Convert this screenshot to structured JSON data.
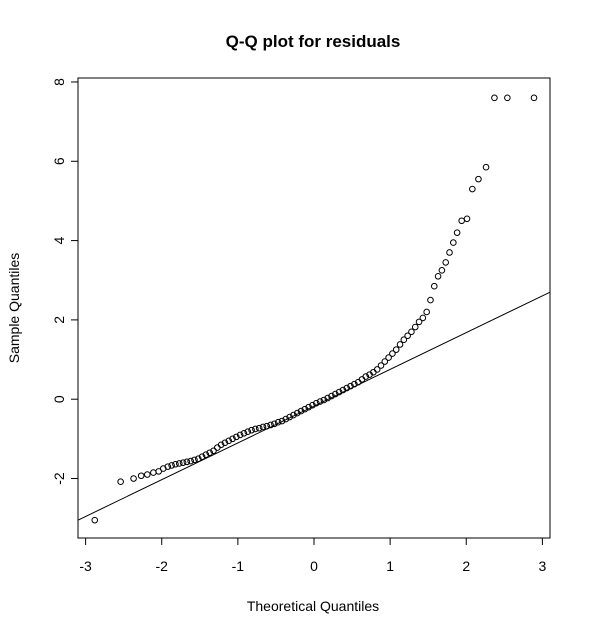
{
  "chart_data": {
    "type": "scatter",
    "title": "Q-Q plot for residuals",
    "xlabel": "Theoretical Quantiles",
    "ylabel": "Sample Quantiles",
    "xlim": [
      -3.1,
      3.1
    ],
    "ylim": [
      -3.5,
      8.1
    ],
    "xticks": [
      -3,
      -2,
      -1,
      0,
      1,
      2,
      3
    ],
    "yticks": [
      -2,
      0,
      2,
      4,
      6,
      8
    ],
    "grid": false,
    "legend": "none",
    "reference_line": {
      "x": [
        -3.1,
        3.1
      ],
      "y": [
        -3.05,
        2.7
      ]
    },
    "points": {
      "x": [
        -2.88,
        -2.54,
        -2.37,
        -2.27,
        -2.19,
        -2.11,
        -2.04,
        -1.98,
        -1.92,
        -1.87,
        -1.82,
        -1.77,
        -1.72,
        -1.67,
        -1.62,
        -1.57,
        -1.52,
        -1.47,
        -1.42,
        -1.37,
        -1.32,
        -1.27,
        -1.22,
        -1.17,
        -1.12,
        -1.07,
        -1.02,
        -0.97,
        -0.92,
        -0.87,
        -0.82,
        -0.77,
        -0.72,
        -0.67,
        -0.62,
        -0.57,
        -0.52,
        -0.47,
        -0.42,
        -0.37,
        -0.32,
        -0.27,
        -0.22,
        -0.17,
        -0.12,
        -0.07,
        -0.02,
        0.03,
        0.08,
        0.13,
        0.18,
        0.23,
        0.28,
        0.33,
        0.38,
        0.43,
        0.48,
        0.53,
        0.58,
        0.63,
        0.68,
        0.73,
        0.78,
        0.83,
        0.88,
        0.93,
        0.98,
        1.03,
        1.08,
        1.13,
        1.18,
        1.23,
        1.28,
        1.33,
        1.38,
        1.43,
        1.48,
        1.53,
        1.58,
        1.63,
        1.68,
        1.73,
        1.78,
        1.83,
        1.88,
        1.94,
        2.01,
        2.08,
        2.16,
        2.26,
        2.37,
        2.54,
        2.89
      ],
      "y": [
        -3.05,
        -2.08,
        -2.0,
        -1.93,
        -1.9,
        -1.85,
        -1.82,
        -1.75,
        -1.7,
        -1.67,
        -1.64,
        -1.62,
        -1.6,
        -1.58,
        -1.56,
        -1.53,
        -1.5,
        -1.45,
        -1.4,
        -1.35,
        -1.3,
        -1.22,
        -1.15,
        -1.1,
        -1.05,
        -1.0,
        -0.95,
        -0.9,
        -0.86,
        -0.82,
        -0.78,
        -0.75,
        -0.73,
        -0.7,
        -0.68,
        -0.65,
        -0.62,
        -0.58,
        -0.55,
        -0.5,
        -0.45,
        -0.4,
        -0.35,
        -0.3,
        -0.25,
        -0.2,
        -0.15,
        -0.1,
        -0.06,
        -0.02,
        0.03,
        0.08,
        0.13,
        0.18,
        0.23,
        0.28,
        0.33,
        0.38,
        0.43,
        0.5,
        0.57,
        0.62,
        0.68,
        0.75,
        0.85,
        0.95,
        1.05,
        1.15,
        1.25,
        1.38,
        1.5,
        1.6,
        1.7,
        1.82,
        1.95,
        2.05,
        2.2,
        2.5,
        2.85,
        3.1,
        3.25,
        3.45,
        3.7,
        3.95,
        4.2,
        4.5,
        4.55,
        5.3,
        5.55,
        5.85,
        7.6,
        7.6,
        7.6
      ]
    }
  }
}
